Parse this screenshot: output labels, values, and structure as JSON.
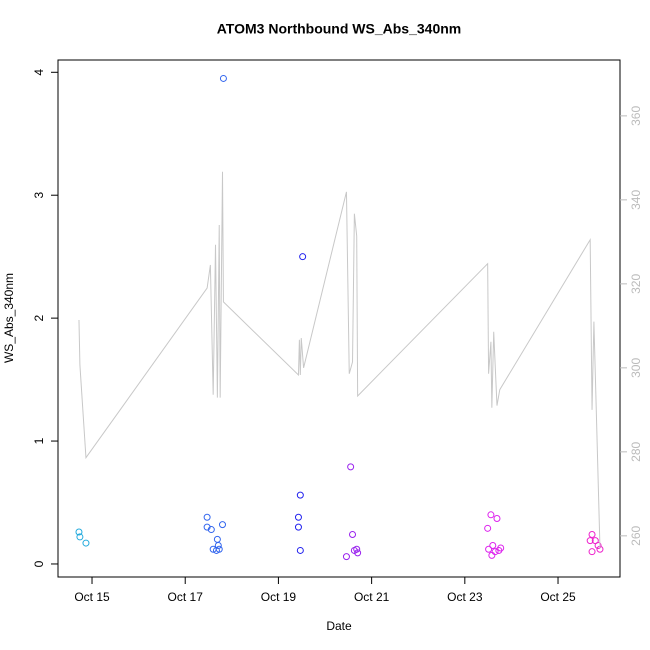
{
  "chart_data": {
    "type": "scatter",
    "title": "ATOM3 Northbound WS_Abs_340nm",
    "x_label": "Date",
    "y_label": "WS_Abs_340nm",
    "xlim": [
      14.27,
      26.33
    ],
    "xticks": [
      {
        "value": 15,
        "label": "Oct 15"
      },
      {
        "value": 17,
        "label": "Oct 17"
      },
      {
        "value": 19,
        "label": "Oct 19"
      },
      {
        "value": 21,
        "label": "Oct 21"
      },
      {
        "value": 23,
        "label": "Oct 23"
      },
      {
        "value": 25,
        "label": "Oct 25"
      }
    ],
    "ylim": [
      -0.106,
      4.1
    ],
    "yticks": [
      0,
      1,
      2,
      3,
      4
    ],
    "y2lim": [
      250.2,
      373.3
    ],
    "y2ticks": [
      260,
      280,
      300,
      320,
      340,
      360
    ],
    "series": [
      {
        "color": "#22aadd",
        "x": [
          14.72,
          14.74,
          14.87
        ],
        "values": [
          0.26,
          0.22,
          0.17
        ]
      },
      {
        "color": "#3366ee",
        "x": [
          17.47,
          17.47,
          17.56,
          17.6,
          17.69,
          17.71,
          17.67,
          17.73,
          17.8,
          17.82
        ],
        "values": [
          0.38,
          0.3,
          0.28,
          0.12,
          0.2,
          0.15,
          0.11,
          0.12,
          0.32,
          3.95
        ]
      },
      {
        "color": "#2222ee",
        "x": [
          19.43,
          19.43,
          19.47,
          19.47,
          19.52
        ],
        "values": [
          0.38,
          0.3,
          0.56,
          0.11,
          2.5
        ]
      },
      {
        "color": "#9922ee",
        "x": [
          20.46,
          20.55,
          20.59,
          20.63,
          20.68,
          20.7
        ],
        "values": [
          0.06,
          0.79,
          0.24,
          0.11,
          0.12,
          0.09
        ]
      },
      {
        "color": "#dd22ee",
        "x": [
          23.49,
          23.51,
          23.56,
          23.6,
          23.69,
          23.58,
          23.65,
          23.73,
          23.77
        ],
        "values": [
          0.29,
          0.12,
          0.4,
          0.15,
          0.37,
          0.07,
          0.1,
          0.11,
          0.13
        ]
      },
      {
        "color": "#ee22cc",
        "x": [
          25.73,
          25.69,
          25.8,
          25.86,
          25.73,
          25.9
        ],
        "values": [
          0.24,
          0.19,
          0.19,
          0.15,
          0.1,
          0.12
        ]
      },
      {
        "type": "line",
        "axis": "y2",
        "color": "#c8c8c8",
        "x": [
          14.72,
          14.74,
          14.87,
          17.47,
          17.54,
          17.6,
          17.65,
          17.69,
          17.73,
          17.75,
          17.8,
          17.82,
          19.43,
          19.45,
          19.47,
          19.49,
          19.54,
          20.46,
          20.52,
          20.59,
          20.63,
          20.68,
          20.7,
          23.49,
          23.51,
          23.56,
          23.58,
          23.62,
          23.69,
          23.75,
          25.69,
          25.73,
          25.77,
          25.9
        ],
        "values": [
          311.4,
          300.7,
          278.6,
          319.0,
          324.5,
          293.6,
          329.3,
          292.9,
          334.0,
          292.9,
          346.7,
          315.7,
          298.3,
          306.7,
          298.3,
          307.1,
          300.0,
          341.9,
          298.6,
          301.4,
          336.7,
          331.4,
          293.3,
          324.8,
          298.6,
          306.2,
          290.5,
          308.6,
          291.0,
          294.8,
          330.5,
          290.0,
          311.0,
          257.1
        ]
      }
    ]
  }
}
